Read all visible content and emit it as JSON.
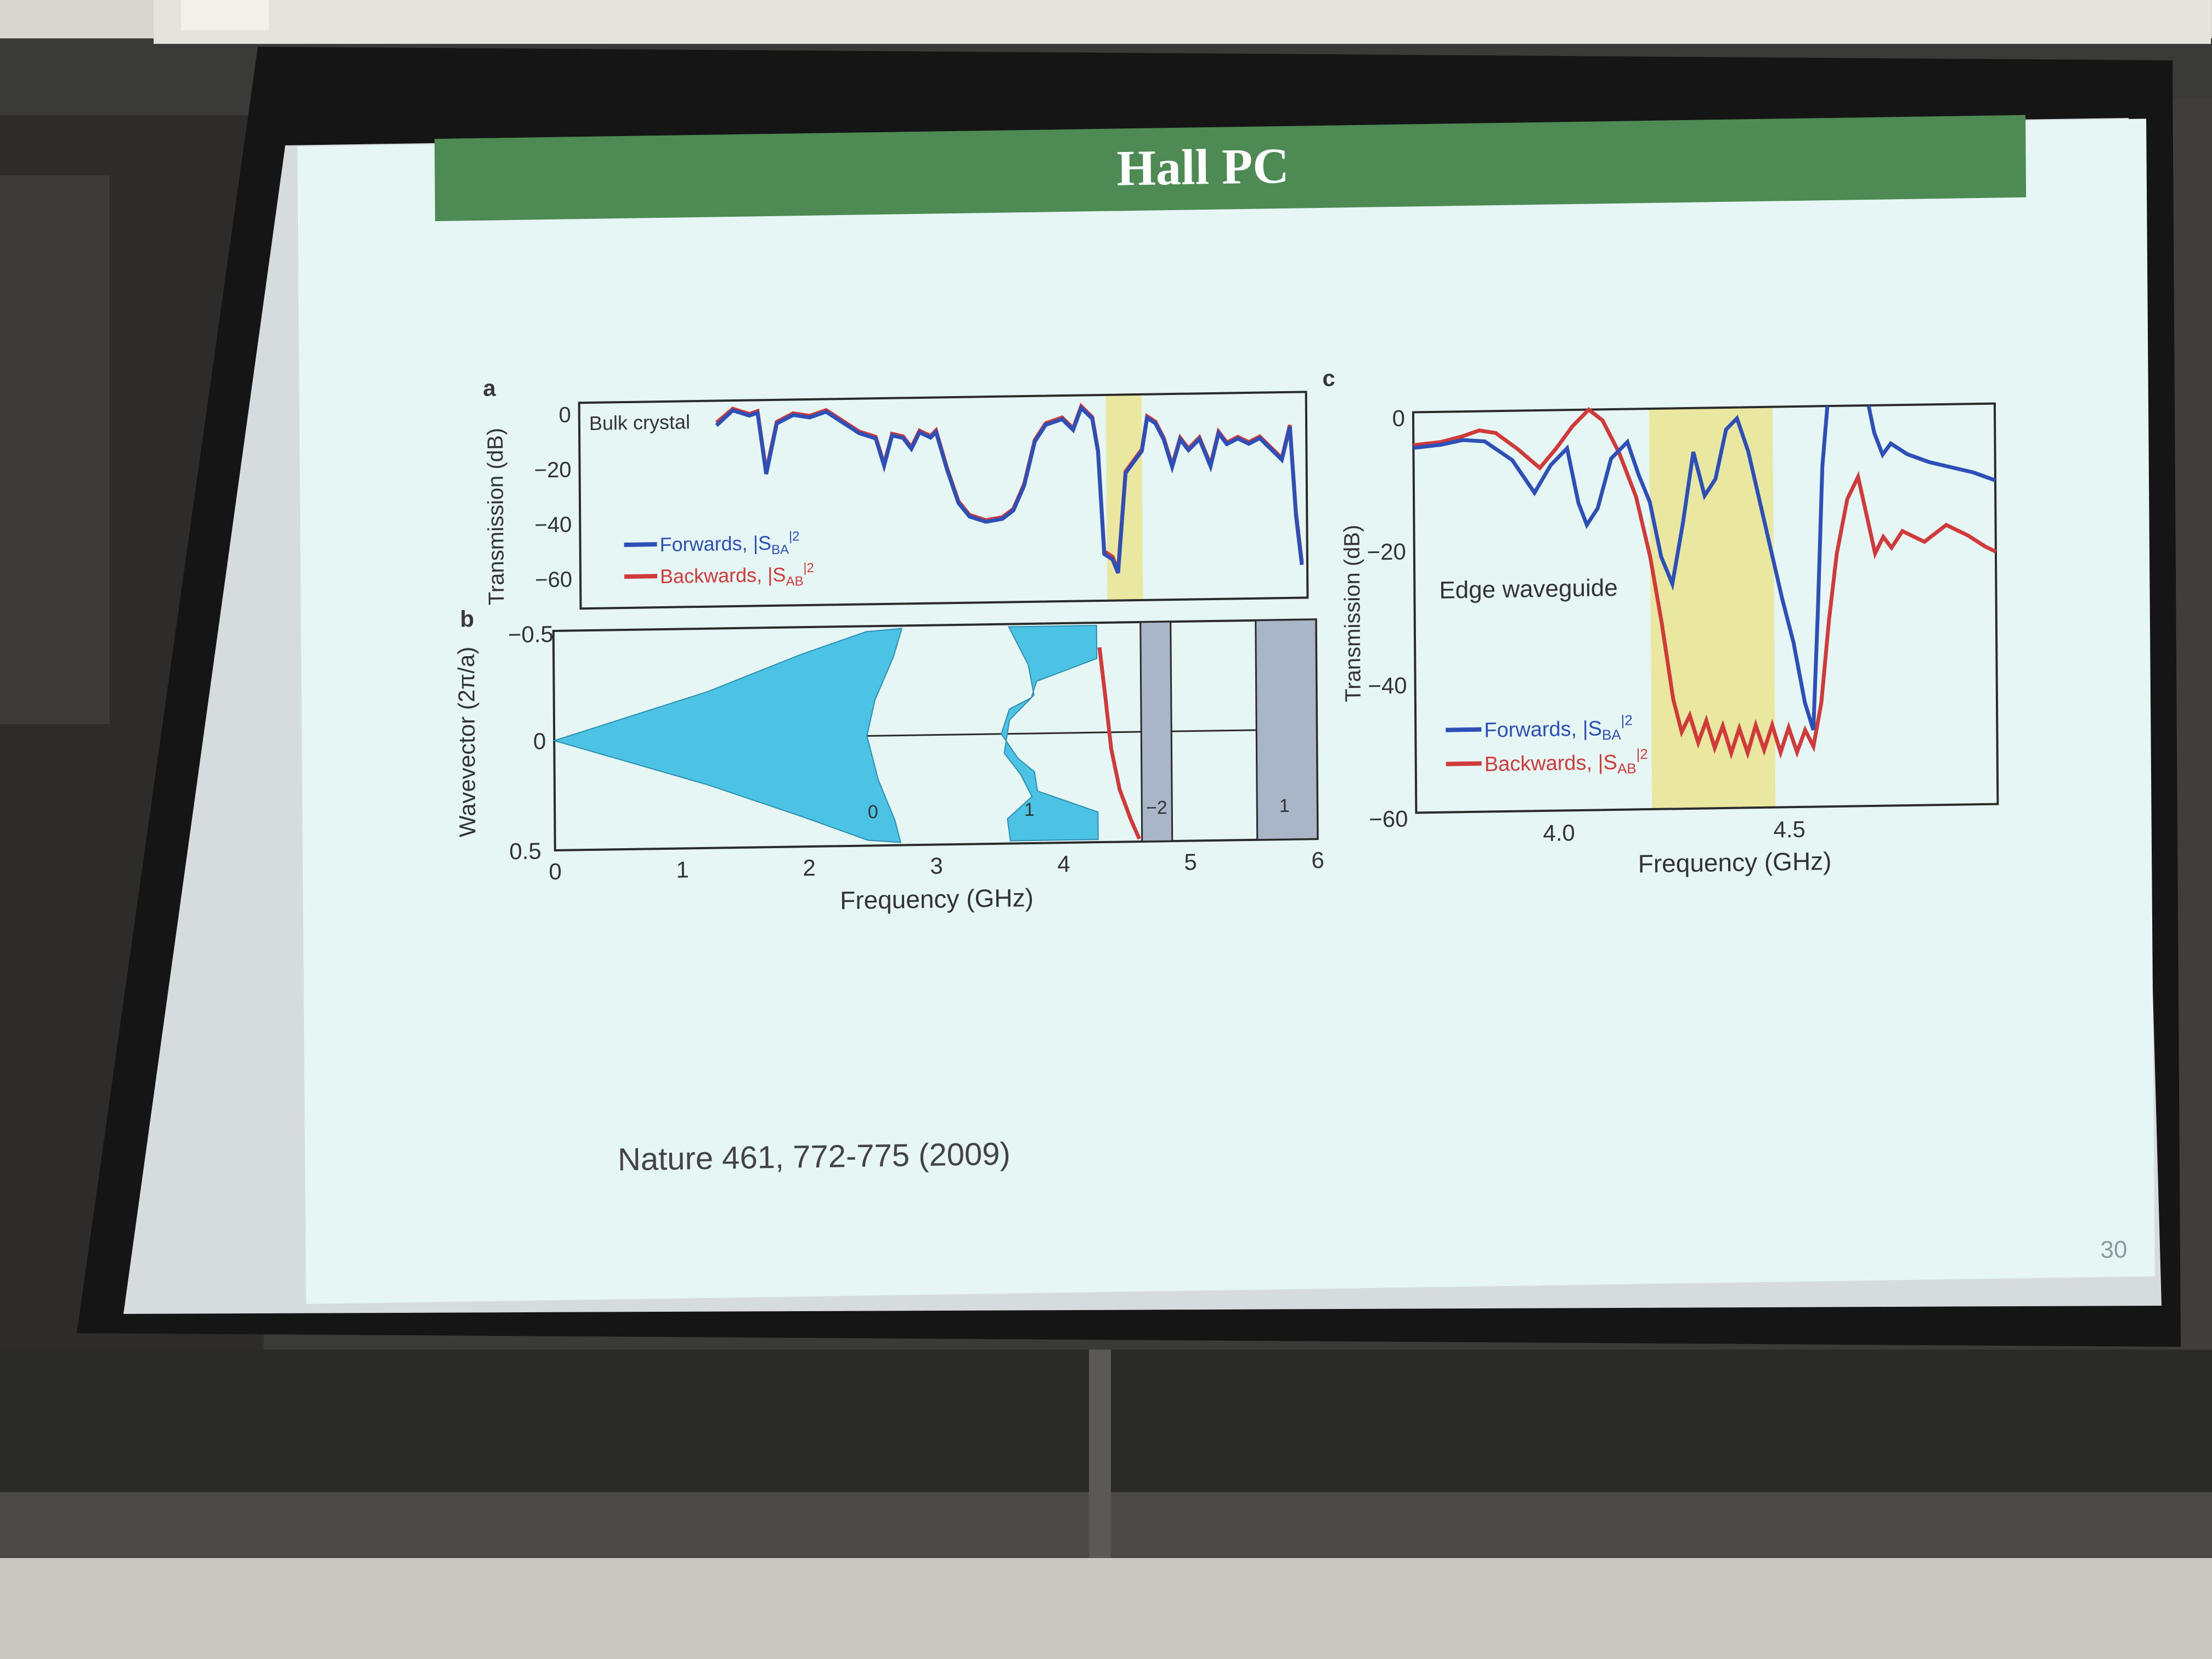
{
  "slide": {
    "title": "Hall PC",
    "citation": "Nature 461, 772-775 (2009)",
    "page_number": "30",
    "colors": {
      "title_bar": "#4e8a54",
      "slide_bg": "#e6f6f4",
      "forward": "#2d4fb8",
      "backward": "#d03a3a",
      "band_fill": "#4cc3e4",
      "highlight": "#e9e7a0",
      "gray_band": "#a9b6c8"
    }
  },
  "panel_a": {
    "letter": "a",
    "annotation": "Bulk crystal",
    "ylabel": "Transmission (dB)",
    "yticks": [
      "0",
      "−20",
      "−40",
      "−60"
    ],
    "legend": [
      {
        "text": "Forwards, |S",
        "sub": "BA",
        "sup": "2"
      },
      {
        "text": "Backwards, |S",
        "sub": "AB",
        "sup": "2"
      }
    ]
  },
  "panel_b": {
    "letter": "b",
    "ylabel": "Wavevector (2π/a)",
    "yticks": [
      "−0.5",
      "0",
      "0.5"
    ],
    "xticks": [
      "0",
      "1",
      "2",
      "3",
      "4",
      "5",
      "6"
    ],
    "xlabel": "Frequency (GHz)",
    "band_labels": [
      "0",
      "1",
      "−2",
      "1"
    ]
  },
  "panel_c": {
    "letter": "c",
    "annotation": "Edge waveguide",
    "ylabel": "Transmission (dB)",
    "yticks": [
      "0",
      "−20",
      "−40",
      "−60"
    ],
    "xticks": [
      "4.0",
      "4.5"
    ],
    "xlabel": "Frequency (GHz)",
    "legend": [
      {
        "text": "Forwards, |S",
        "sub": "BA",
        "sup": "2"
      },
      {
        "text": "Backwards, |S",
        "sub": "AB",
        "sup": "2"
      }
    ]
  }
}
